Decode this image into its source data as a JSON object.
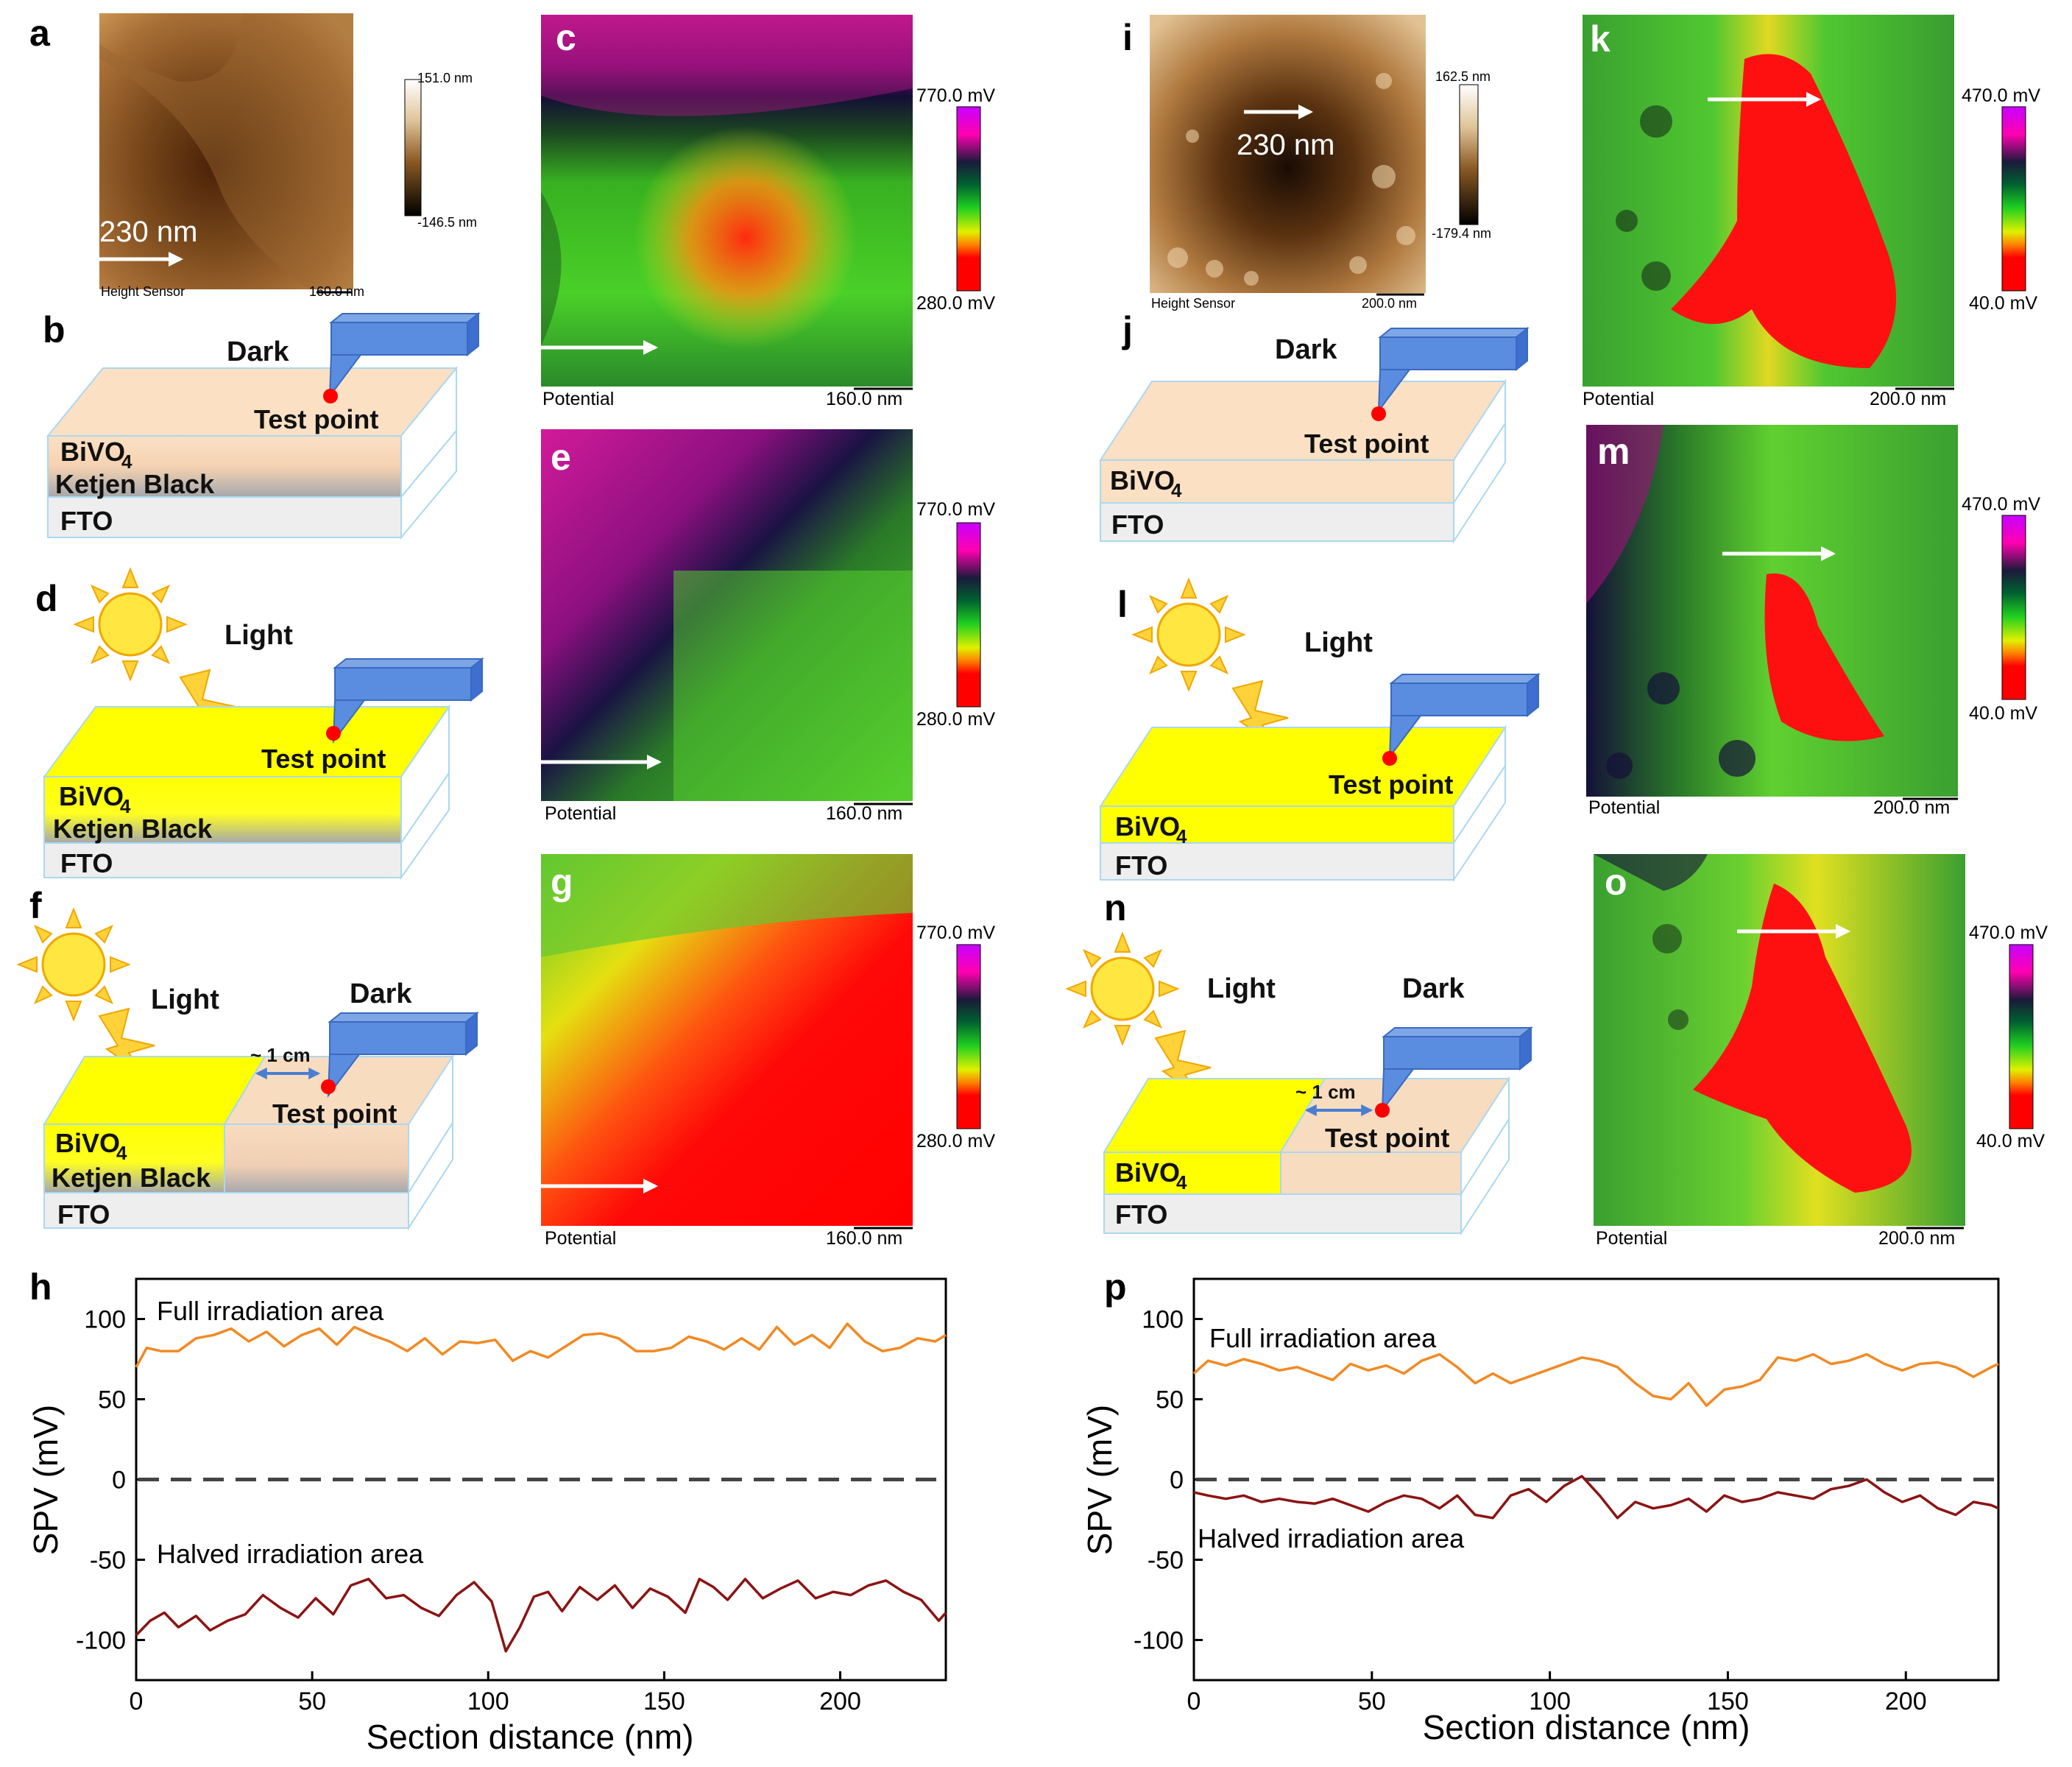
{
  "panel_labels": [
    "a",
    "b",
    "c",
    "d",
    "e",
    "f",
    "g",
    "h",
    "i",
    "j",
    "k",
    "l",
    "m",
    "n",
    "o",
    "p"
  ],
  "afm": {
    "a": {
      "caption": "Height Sensor",
      "scale": "160.0 nm",
      "cbar_max": "151.0 nm",
      "cbar_min": "-146.5 nm",
      "arrow_text": "230 nm"
    },
    "i": {
      "caption": "Height Sensor",
      "scale": "200.0 nm",
      "cbar_max": "162.5 nm",
      "cbar_min": "-179.4 nm",
      "arrow_text": "230 nm"
    }
  },
  "kpfm_left": {
    "caption": "Potential",
    "scale": "160.0 nm",
    "cbar_max": "770.0 mV",
    "cbar_min": "280.0 mV"
  },
  "kpfm_right": {
    "caption": "Potential",
    "scale": "200.0 nm",
    "cbar_max": "470.0 mV",
    "cbar_min": "40.0 mV"
  },
  "schematic": {
    "dark": "Dark",
    "light": "Light",
    "test_point": "Test point",
    "bivo4": "BiVO",
    "bivo4_sub": "4",
    "ketjen": "Ketjen Black",
    "fto": "FTO",
    "distance": "~ 1 cm"
  },
  "chart_data": [
    {
      "panel": "h",
      "type": "line",
      "xlabel": "Section distance (nm)",
      "ylabel": "SPV (mV)",
      "xlim": [
        0,
        230
      ],
      "ylim": [
        -125,
        125
      ],
      "xticks": [
        0,
        50,
        100,
        150,
        200
      ],
      "yticks": [
        100,
        50,
        0,
        -50,
        -100
      ],
      "annotations": [
        "Full irradiation area",
        "Halved irradiation area"
      ],
      "series": [
        {
          "color": "#f08a24",
          "x": [
            0,
            3,
            7,
            12,
            17,
            22,
            27,
            32,
            37,
            42,
            47,
            52,
            57,
            62,
            67,
            72,
            77,
            82,
            87,
            92,
            97,
            102,
            107,
            112,
            117,
            122,
            127,
            132,
            137,
            142,
            147,
            152,
            157,
            162,
            167,
            172,
            177,
            182,
            187,
            192,
            197,
            202,
            207,
            212,
            217,
            222,
            227,
            230
          ],
          "y": [
            70,
            82,
            80,
            80,
            88,
            90,
            94,
            86,
            92,
            83,
            90,
            94,
            84,
            95,
            90,
            86,
            80,
            88,
            78,
            86,
            85,
            87,
            74,
            80,
            76,
            83,
            90,
            91,
            88,
            80,
            80,
            82,
            89,
            86,
            81,
            88,
            81,
            95,
            84,
            90,
            82,
            97,
            86,
            80,
            82,
            88,
            86,
            90
          ]
        },
        {
          "color": "#8b1414",
          "x": [
            0,
            4,
            8,
            12,
            17,
            21,
            26,
            31,
            36,
            41,
            46,
            51,
            56,
            61,
            66,
            71,
            76,
            81,
            86,
            91,
            96,
            101,
            105,
            109,
            113,
            117,
            121,
            126,
            131,
            136,
            141,
            146,
            151,
            156,
            160,
            164,
            168,
            173,
            178,
            183,
            188,
            193,
            198,
            203,
            208,
            213,
            218,
            223,
            228,
            230
          ],
          "y": [
            -97,
            -88,
            -83,
            -92,
            -85,
            -94,
            -88,
            -84,
            -72,
            -80,
            -86,
            -74,
            -84,
            -66,
            -62,
            -74,
            -72,
            -80,
            -85,
            -72,
            -64,
            -76,
            -107,
            -92,
            -73,
            -70,
            -82,
            -67,
            -75,
            -66,
            -80,
            -68,
            -73,
            -83,
            -62,
            -67,
            -75,
            -62,
            -74,
            -68,
            -63,
            -74,
            -70,
            -72,
            -66,
            -63,
            -70,
            -75,
            -88,
            -83
          ]
        }
      ]
    },
    {
      "panel": "p",
      "type": "line",
      "xlabel": "Section distance (nm)",
      "ylabel": "SPV (mV)",
      "xlim": [
        0,
        226
      ],
      "ylim": [
        -125,
        125
      ],
      "xticks": [
        0,
        50,
        100,
        150,
        200
      ],
      "yticks": [
        100,
        50,
        0,
        -50,
        -100
      ],
      "annotations": [
        "Full irradiation area",
        "Halved irradiation area"
      ],
      "series": [
        {
          "color": "#f08a24",
          "x": [
            0,
            4,
            9,
            14,
            19,
            24,
            29,
            34,
            39,
            44,
            49,
            54,
            59,
            64,
            69,
            74,
            79,
            84,
            89,
            94,
            99,
            104,
            109,
            114,
            119,
            124,
            129,
            134,
            139,
            144,
            149,
            154,
            159,
            164,
            169,
            174,
            179,
            184,
            189,
            194,
            199,
            204,
            209,
            214,
            219,
            224,
            226
          ],
          "y": [
            66,
            74,
            71,
            75,
            72,
            68,
            70,
            66,
            62,
            72,
            68,
            71,
            66,
            74,
            78,
            70,
            60,
            66,
            60,
            64,
            68,
            72,
            76,
            74,
            70,
            60,
            52,
            50,
            60,
            46,
            56,
            58,
            62,
            76,
            74,
            78,
            72,
            74,
            78,
            72,
            68,
            72,
            73,
            70,
            64,
            70,
            72
          ]
        },
        {
          "color": "#8b1414",
          "x": [
            0,
            4,
            9,
            14,
            19,
            24,
            29,
            34,
            39,
            44,
            49,
            54,
            59,
            64,
            69,
            74,
            79,
            84,
            89,
            94,
            99,
            104,
            109,
            114,
            119,
            124,
            129,
            134,
            139,
            144,
            149,
            154,
            159,
            164,
            169,
            174,
            179,
            184,
            189,
            194,
            199,
            204,
            209,
            214,
            219,
            224,
            226
          ],
          "y": [
            -8,
            -10,
            -12,
            -10,
            -14,
            -12,
            -14,
            -15,
            -12,
            -16,
            -20,
            -14,
            -10,
            -12,
            -18,
            -10,
            -22,
            -24,
            -10,
            -6,
            -14,
            -4,
            2,
            -10,
            -24,
            -14,
            -18,
            -16,
            -12,
            -20,
            -10,
            -14,
            -12,
            -8,
            -10,
            -12,
            -6,
            -4,
            0,
            -8,
            -14,
            -10,
            -18,
            -22,
            -14,
            -16,
            -18
          ]
        }
      ]
    }
  ]
}
